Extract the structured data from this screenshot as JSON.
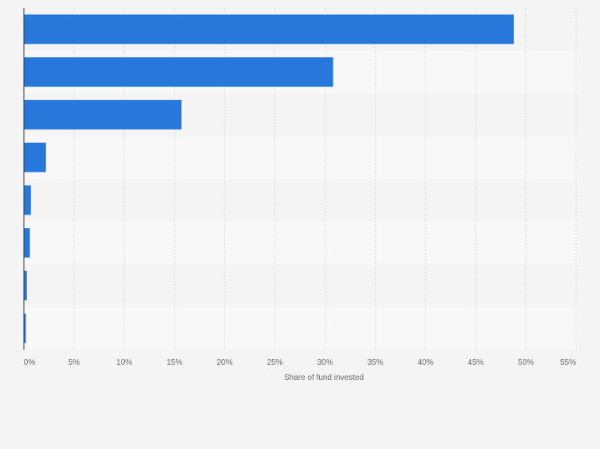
{
  "chart_data": {
    "type": "bar",
    "orientation": "horizontal",
    "title": "",
    "categories": [
      "",
      "",
      "",
      "",
      "",
      "",
      "",
      ""
    ],
    "values": [
      48.8,
      30.8,
      15.7,
      2.2,
      0.7,
      0.6,
      0.3,
      0.2
    ],
    "xlabel": "Share of fund invested",
    "ylabel": "",
    "xlim": [
      0,
      55
    ],
    "x_ticks": [
      "0%",
      "5%",
      "10%",
      "15%",
      "20%",
      "25%",
      "30%",
      "35%",
      "40%",
      "45%",
      "50%",
      "55%"
    ],
    "grid": true,
    "legend": "none",
    "colors": {
      "bar": "#2878dc",
      "band_a": "#f4f4f4",
      "band_b": "#f8f8f8",
      "grid": "#d6d6d6",
      "axis": "#333333",
      "tick_text": "#666666"
    }
  }
}
